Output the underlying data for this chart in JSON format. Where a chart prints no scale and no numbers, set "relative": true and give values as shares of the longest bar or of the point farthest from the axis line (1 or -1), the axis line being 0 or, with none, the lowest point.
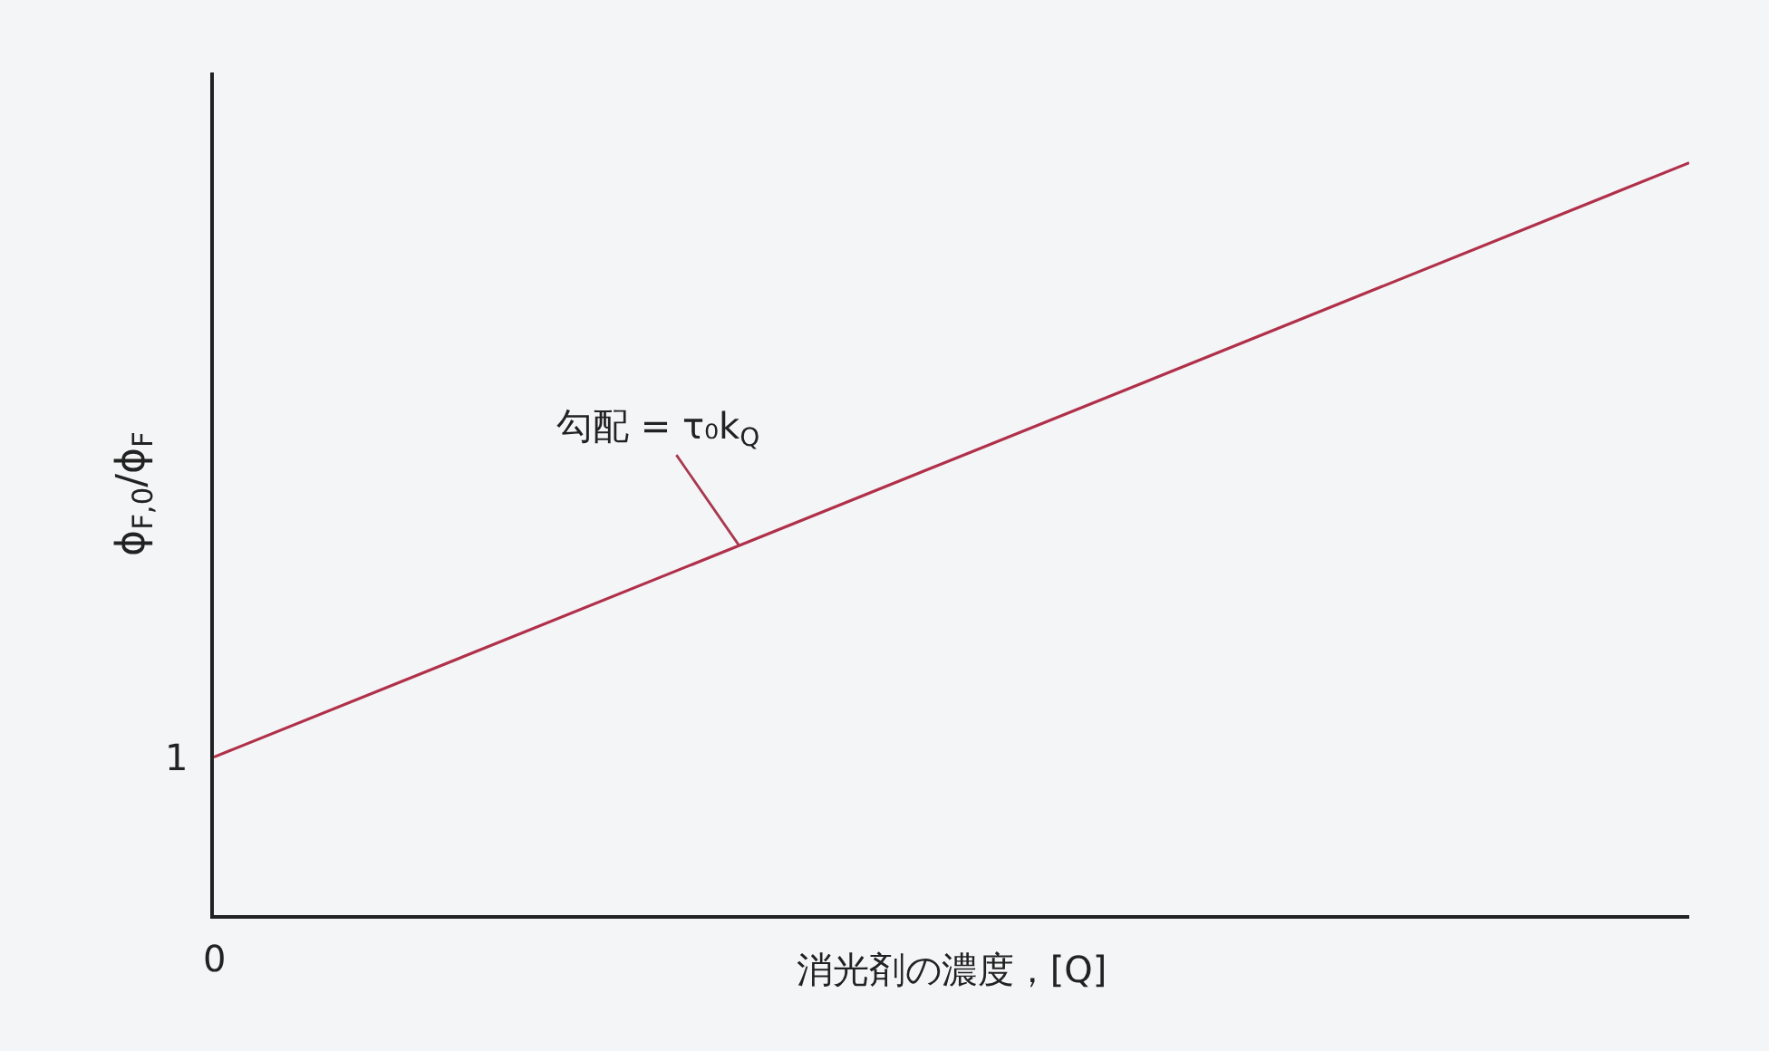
{
  "chart_data": {
    "type": "line",
    "relative": true,
    "categories": [
      null,
      null
    ],
    "series": [
      {
        "color": "#b0304a",
        "values": [
          0.21,
          1
        ]
      }
    ],
    "xlabel": "消光剤の濃度，[Q]",
    "ylabel": "ϕ$_{F,0}$/ϕ$_{F}$",
    "annotations": [
      "1",
      "0",
      "勾配 = τ₀k$_{Q}$"
    ],
    "grid": false,
    "marker": "none",
    "line_style": "solid"
  }
}
